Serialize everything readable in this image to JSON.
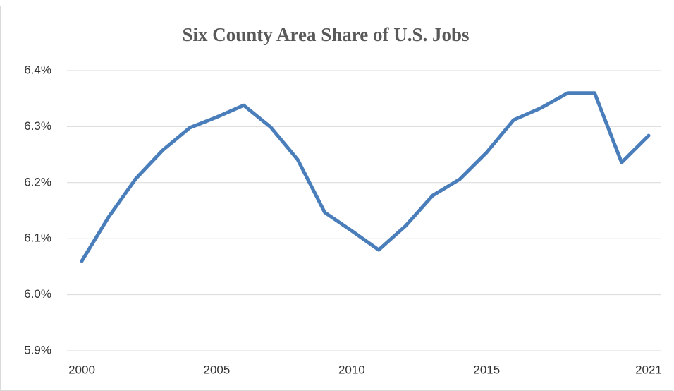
{
  "chart_data": {
    "type": "line",
    "title": "Six County Area Share of U.S. Jobs",
    "x": [
      2000,
      2001,
      2002,
      2003,
      2004,
      2005,
      2006,
      2007,
      2008,
      2009,
      2010,
      2011,
      2012,
      2013,
      2014,
      2015,
      2016,
      2017,
      2018,
      2019,
      2020,
      2021
    ],
    "series": [
      {
        "name": "Six County Area Share of U.S. Jobs",
        "color": "#4a7ebb",
        "values": [
          6.06,
          6.139,
          6.207,
          6.258,
          6.298,
          6.317,
          6.338,
          6.299,
          6.241,
          6.147,
          6.114,
          6.08,
          6.123,
          6.177,
          6.206,
          6.254,
          6.312,
          6.333,
          6.36,
          6.36,
          6.236,
          6.284
        ]
      }
    ],
    "xlim": [
      2000,
      2021
    ],
    "xticks": [
      2000,
      2005,
      2010,
      2015,
      2021
    ],
    "ylim": [
      5.9,
      6.4
    ],
    "yticks": [
      {
        "value": 5.9,
        "label": "5.9%"
      },
      {
        "value": 6.0,
        "label": "6.0%"
      },
      {
        "value": 6.1,
        "label": "6.1%"
      },
      {
        "value": 6.2,
        "label": "6.2%"
      },
      {
        "value": 6.3,
        "label": "6.3%"
      },
      {
        "value": 6.4,
        "label": "6.4%"
      }
    ],
    "grid": true
  }
}
